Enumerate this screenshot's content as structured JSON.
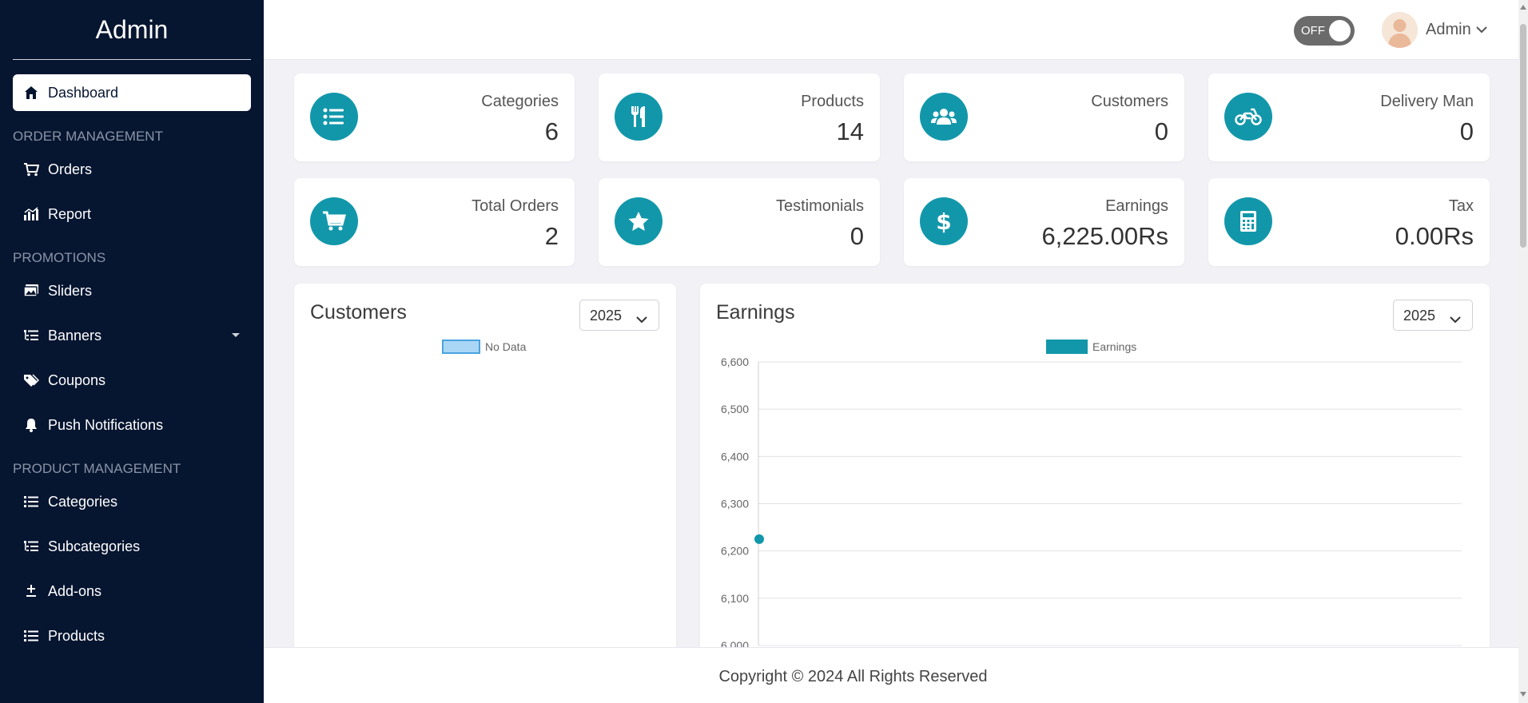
{
  "brand": "Admin",
  "sidebar": {
    "dashboard": "Dashboard",
    "sections": {
      "order": "ORDER MANAGEMENT",
      "promotions": "PROMOTIONS",
      "product": "PRODUCT MANAGEMENT"
    },
    "orders": "Orders",
    "report": "Report",
    "sliders": "Sliders",
    "banners": "Banners",
    "coupons": "Coupons",
    "push": "Push Notifications",
    "categories": "Categories",
    "subcategories": "Subcategories",
    "addons": "Add-ons",
    "products": "Products"
  },
  "topbar": {
    "toggle_label": "OFF",
    "user_name": "Admin"
  },
  "stats": [
    {
      "label": "Categories",
      "value": "6",
      "icon": "list-icon"
    },
    {
      "label": "Products",
      "value": "14",
      "icon": "utensils-icon"
    },
    {
      "label": "Customers",
      "value": "0",
      "icon": "users-icon"
    },
    {
      "label": "Delivery Man",
      "value": "0",
      "icon": "motorcycle-icon"
    },
    {
      "label": "Total Orders",
      "value": "2",
      "icon": "cart-icon"
    },
    {
      "label": "Testimonials",
      "value": "0",
      "icon": "star-icon"
    },
    {
      "label": "Earnings",
      "value": "6,225.00Rs",
      "icon": "dollar-icon"
    },
    {
      "label": "Tax",
      "value": "0.00Rs",
      "icon": "calculator-icon"
    }
  ],
  "customers_panel": {
    "title": "Customers",
    "year": "2025",
    "legend": "No Data"
  },
  "earnings_panel": {
    "title": "Earnings",
    "year": "2025",
    "legend": "Earnings"
  },
  "chart_data": {
    "type": "line",
    "title": "",
    "series": [
      {
        "name": "Earnings",
        "values": [
          6225
        ]
      }
    ],
    "x": [
      ""
    ],
    "ylim": [
      6000,
      6600
    ],
    "yticks": [
      "6,600",
      "6,500",
      "6,400",
      "6,300",
      "6,200",
      "6,100",
      "6,000"
    ],
    "grid": true,
    "legend_position": "top-center",
    "color": "#1297aa"
  },
  "footer": "Copyright © 2024 All Rights Reserved",
  "colors": {
    "accent": "#1297aa",
    "sidebar": "#061530"
  }
}
